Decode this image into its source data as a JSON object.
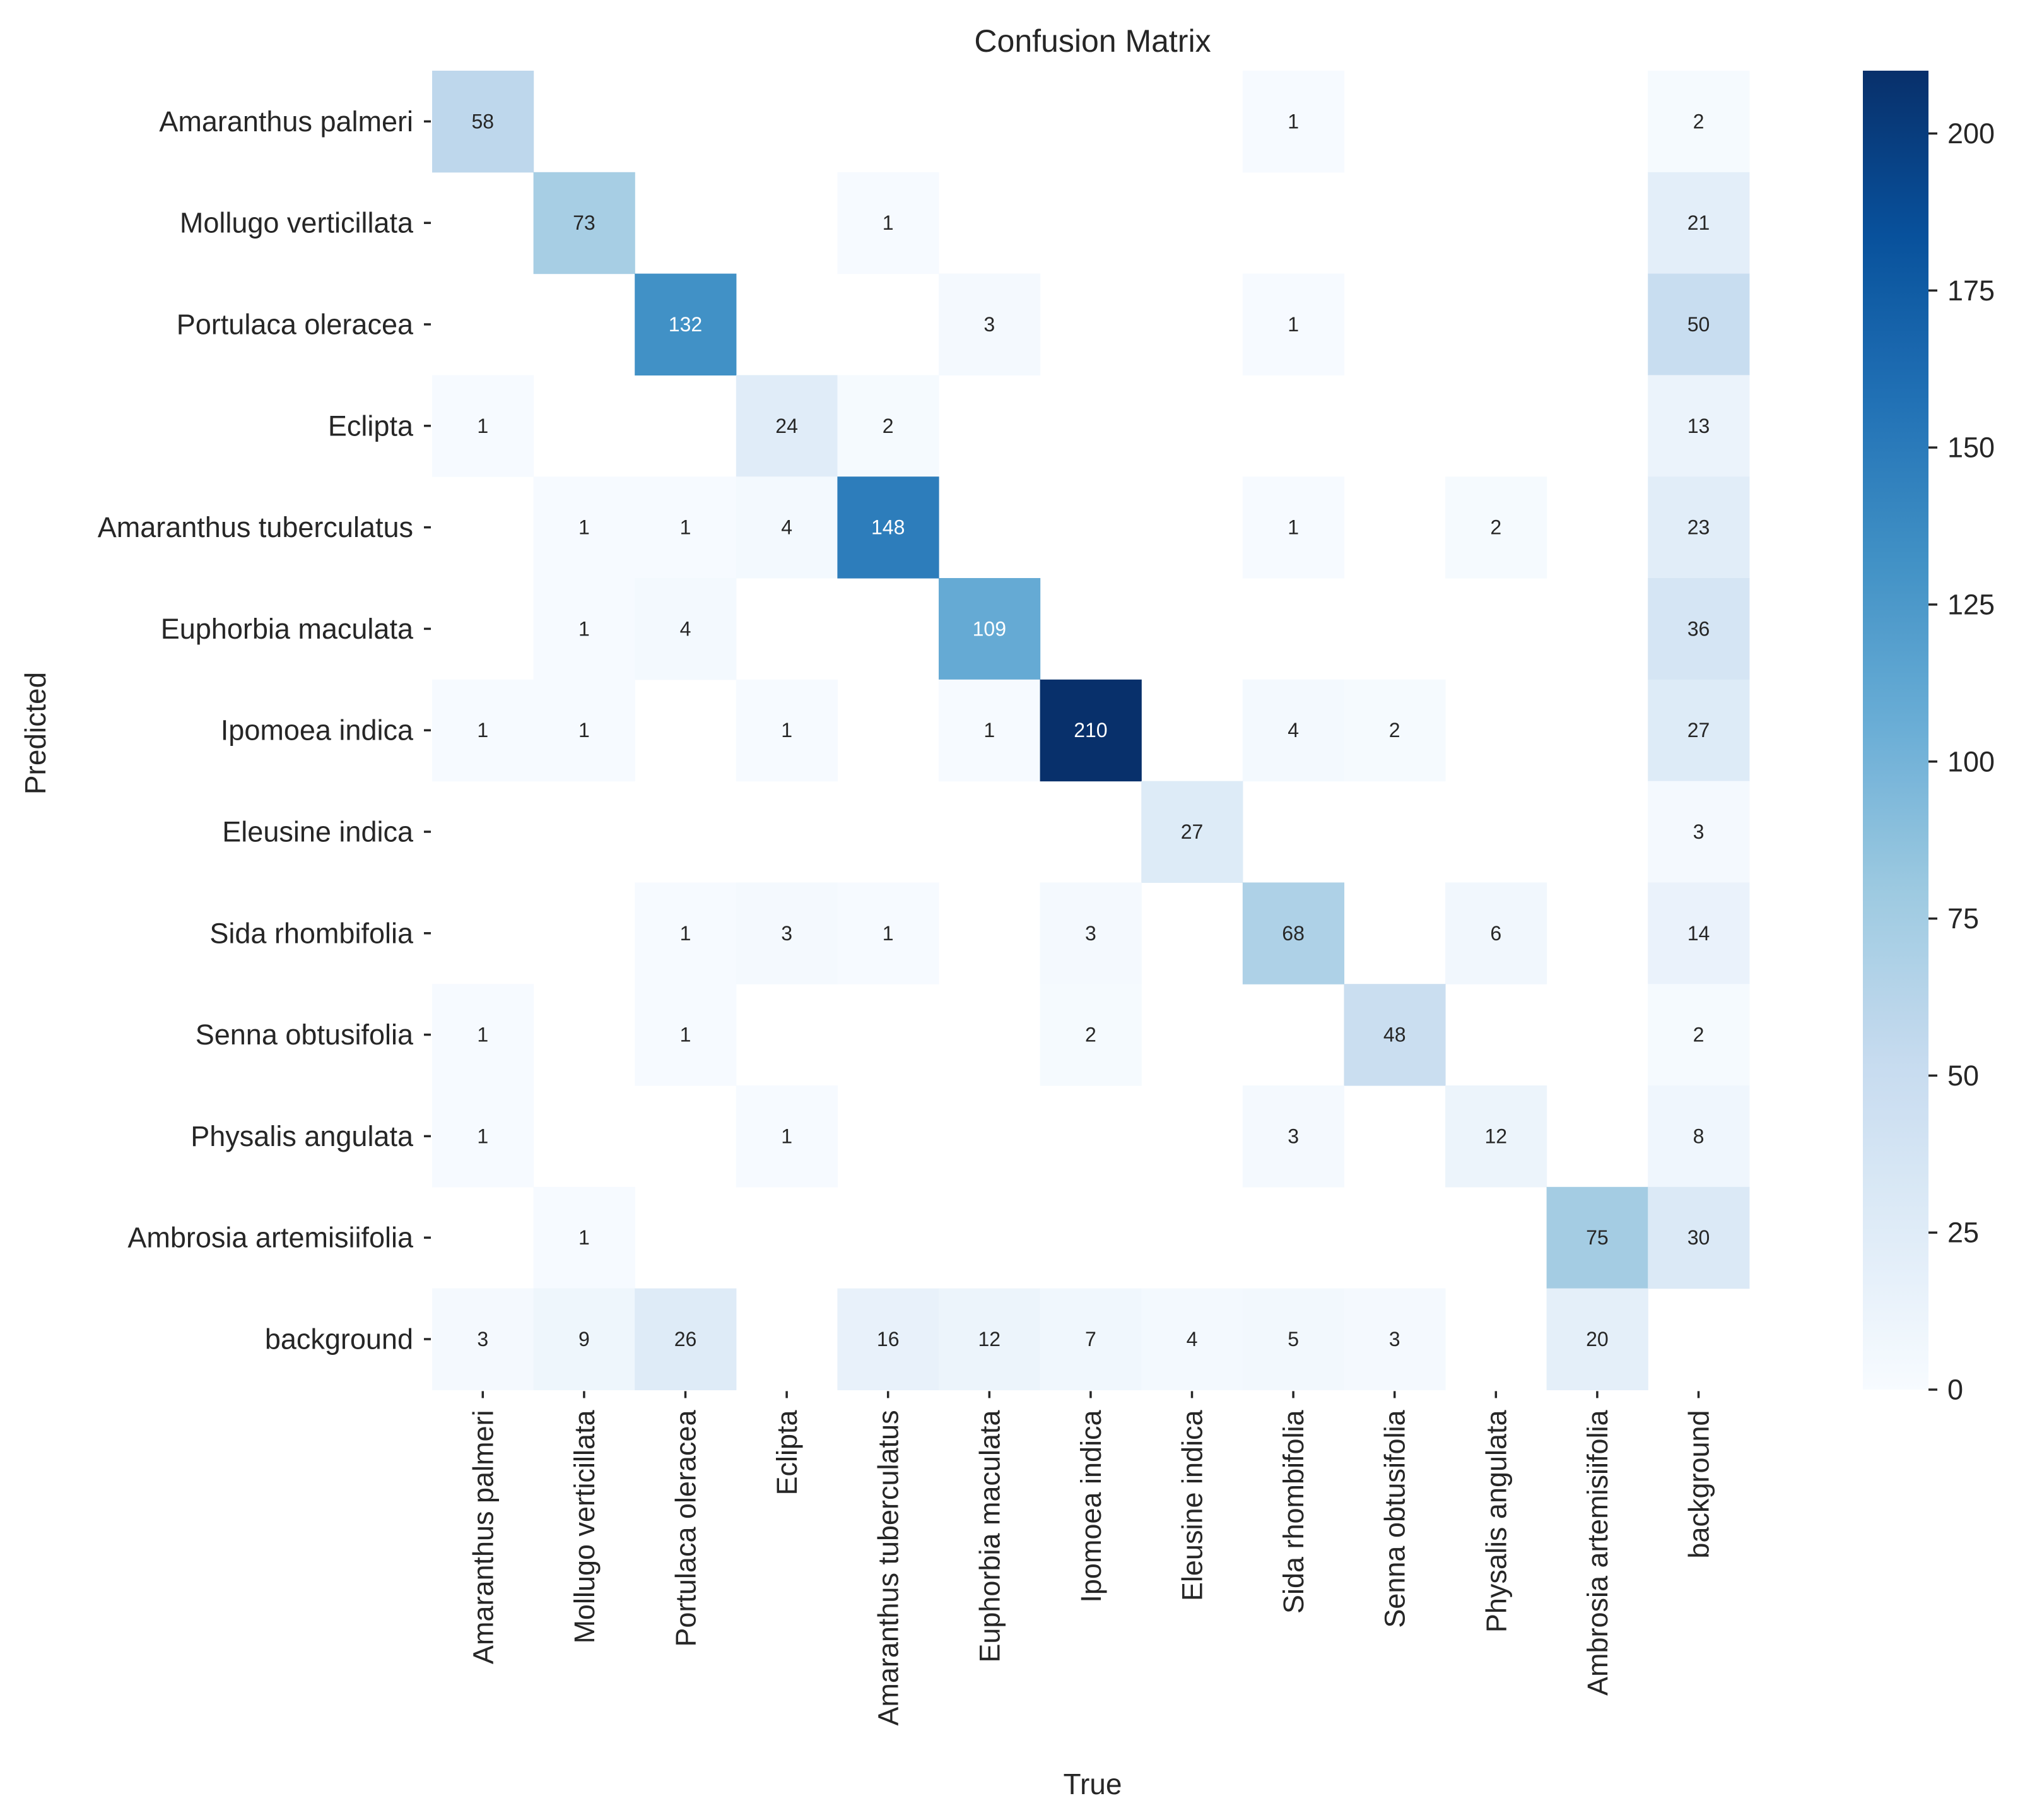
{
  "chart_data": {
    "type": "heatmap",
    "title": "Confusion Matrix",
    "xlabel": "True",
    "ylabel": "Predicted",
    "row_labels": [
      "Amaranthus palmeri",
      "Mollugo verticillata",
      "Portulaca oleracea",
      "Eclipta",
      "Amaranthus tuberculatus",
      "Euphorbia maculata",
      "Ipomoea indica",
      "Eleusine indica",
      "Sida rhombifolia",
      "Senna obtusifolia",
      "Physalis angulata",
      "Ambrosia artemisiifolia",
      "background"
    ],
    "col_labels": [
      "Amaranthus palmeri",
      "Mollugo verticillata",
      "Portulaca oleracea",
      "Eclipta",
      "Amaranthus tuberculatus",
      "Euphorbia maculata",
      "Ipomoea indica",
      "Eleusine indica",
      "Sida rhombifolia",
      "Senna obtusifolia",
      "Physalis angulata",
      "Ambrosia artemisiifolia",
      "background"
    ],
    "matrix": [
      [
        58,
        0,
        0,
        0,
        0,
        0,
        0,
        0,
        1,
        0,
        0,
        0,
        2
      ],
      [
        0,
        73,
        0,
        0,
        1,
        0,
        0,
        0,
        0,
        0,
        0,
        0,
        21
      ],
      [
        0,
        0,
        132,
        0,
        0,
        3,
        0,
        0,
        1,
        0,
        0,
        0,
        50
      ],
      [
        1,
        0,
        0,
        24,
        2,
        0,
        0,
        0,
        0,
        0,
        0,
        0,
        13
      ],
      [
        0,
        1,
        1,
        4,
        148,
        0,
        0,
        0,
        1,
        0,
        2,
        0,
        23
      ],
      [
        0,
        1,
        4,
        0,
        0,
        109,
        0,
        0,
        0,
        0,
        0,
        0,
        36
      ],
      [
        1,
        1,
        0,
        1,
        0,
        1,
        210,
        0,
        4,
        2,
        0,
        0,
        27
      ],
      [
        0,
        0,
        0,
        0,
        0,
        0,
        0,
        27,
        0,
        0,
        0,
        0,
        3
      ],
      [
        0,
        0,
        1,
        3,
        1,
        0,
        3,
        0,
        68,
        0,
        6,
        0,
        14
      ],
      [
        1,
        0,
        1,
        0,
        0,
        0,
        2,
        0,
        0,
        48,
        0,
        0,
        2
      ],
      [
        1,
        0,
        0,
        1,
        0,
        0,
        0,
        0,
        3,
        0,
        12,
        0,
        8
      ],
      [
        0,
        1,
        0,
        0,
        0,
        0,
        0,
        0,
        0,
        0,
        0,
        75,
        30
      ],
      [
        3,
        9,
        26,
        0,
        16,
        12,
        7,
        4,
        5,
        3,
        0,
        20,
        0
      ]
    ],
    "zero_cells_shown": false,
    "colormap": "Blues",
    "colorbar": {
      "vmin": 0,
      "vmax": 210,
      "ticks": [
        0,
        25,
        50,
        75,
        100,
        125,
        150,
        175,
        200
      ]
    },
    "grid": false,
    "legend": "none"
  },
  "colors": {
    "text_dark": "#262626",
    "text_light": "#ffffff",
    "background": "#ffffff"
  }
}
